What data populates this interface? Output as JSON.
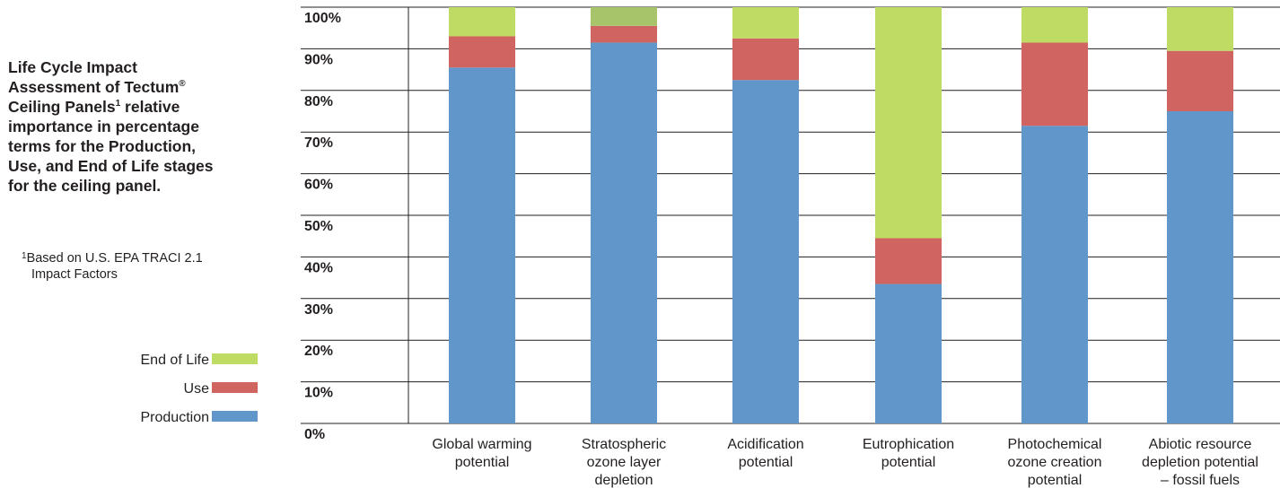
{
  "sidebar": {
    "title_part1": "Life Cycle Impact\nAssessment of Tectum",
    "title_sup1": "®",
    "title_part2": "\nCeiling Panels",
    "title_sup2": "1",
    "title_part3": " relative\nimportance in percentage\nterms for the Production,\nUse, and End of Life stages\nfor the ceiling panel.",
    "footnote_mark": "1",
    "footnote_line1": "Based on U.S. EPA TRACI 2.1",
    "footnote_line2": "Impact Factors"
  },
  "chart_data": {
    "type": "bar",
    "stacked": true,
    "categories": [
      [
        "Global warming",
        "potential"
      ],
      [
        "Stratospheric",
        "ozone layer",
        "depletion"
      ],
      [
        "Acidification",
        "potential"
      ],
      [
        "Eutrophication",
        "potential"
      ],
      [
        "Photochemical",
        "ozone creation",
        "potential"
      ],
      [
        "Abiotic resource",
        "depletion potential",
        "– fossil fuels"
      ]
    ],
    "series": [
      {
        "name": "Production",
        "values": [
          85.5,
          91.5,
          82.5,
          33.5,
          71.5,
          75
        ],
        "color": "#6096c9"
      },
      {
        "name": "Use",
        "values": [
          7.5,
          4,
          10,
          11,
          20,
          14.5
        ],
        "color": "#cf6460"
      },
      {
        "name": "End of Life",
        "values": [
          7,
          4.5,
          7.5,
          55.5,
          8.5,
          10.5
        ],
        "color": "#bedb63",
        "colors": [
          "#bedb63",
          "#a7c46b",
          "#bedb63",
          "#bedb63",
          "#bedb63",
          "#bedb63"
        ]
      }
    ],
    "yticks": [
      "0%",
      "10%",
      "20%",
      "30%",
      "40%",
      "50%",
      "60%",
      "70%",
      "80%",
      "90%",
      "100%"
    ],
    "ylim": [
      0,
      100
    ],
    "grid": true,
    "legend_position": "left",
    "legend_order": [
      "End of Life",
      "Use",
      "Production"
    ]
  }
}
